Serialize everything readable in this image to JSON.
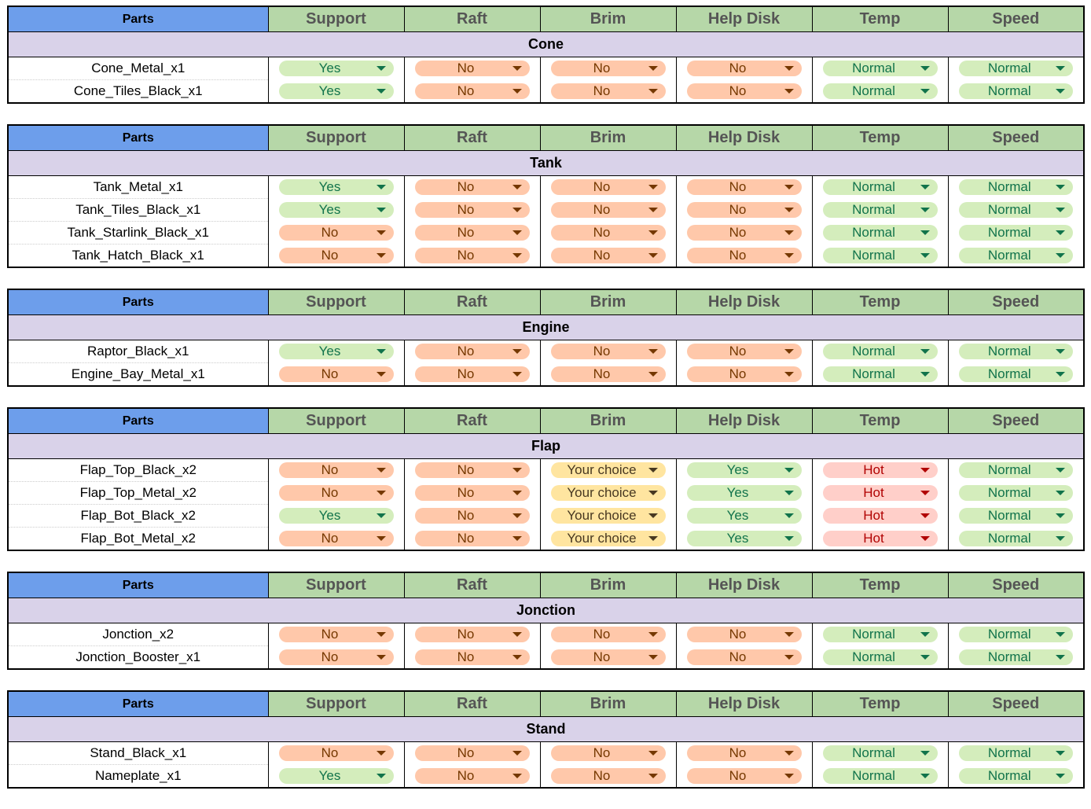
{
  "columns": [
    "Parts",
    "Support",
    "Raft",
    "Brim",
    "Help Disk",
    "Temp",
    "Speed"
  ],
  "tables": [
    {
      "title": "Cone",
      "rows": [
        {
          "part": "Cone_Metal_x1",
          "values": [
            "Yes",
            "No",
            "No",
            "No",
            "Normal",
            "Normal"
          ]
        },
        {
          "part": "Cone_Tiles_Black_x1",
          "values": [
            "Yes",
            "No",
            "No",
            "No",
            "Normal",
            "Normal"
          ]
        }
      ]
    },
    {
      "title": "Tank",
      "rows": [
        {
          "part": "Tank_Metal_x1",
          "values": [
            "Yes",
            "No",
            "No",
            "No",
            "Normal",
            "Normal"
          ]
        },
        {
          "part": "Tank_Tiles_Black_x1",
          "values": [
            "Yes",
            "No",
            "No",
            "No",
            "Normal",
            "Normal"
          ]
        },
        {
          "part": "Tank_Starlink_Black_x1",
          "values": [
            "No",
            "No",
            "No",
            "No",
            "Normal",
            "Normal"
          ]
        },
        {
          "part": "Tank_Hatch_Black_x1",
          "values": [
            "No",
            "No",
            "No",
            "No",
            "Normal",
            "Normal"
          ]
        }
      ]
    },
    {
      "title": "Engine",
      "rows": [
        {
          "part": "Raptor_Black_x1",
          "values": [
            "Yes",
            "No",
            "No",
            "No",
            "Normal",
            "Normal"
          ]
        },
        {
          "part": "Engine_Bay_Metal_x1",
          "values": [
            "No",
            "No",
            "No",
            "No",
            "Normal",
            "Normal"
          ]
        }
      ]
    },
    {
      "title": "Flap",
      "rows": [
        {
          "part": "Flap_Top_Black_x2",
          "values": [
            "No",
            "No",
            "Your choice",
            "Yes",
            "Hot",
            "Normal"
          ]
        },
        {
          "part": "Flap_Top_Metal_x2",
          "values": [
            "No",
            "No",
            "Your choice",
            "Yes",
            "Hot",
            "Normal"
          ]
        },
        {
          "part": "Flap_Bot_Black_x2",
          "values": [
            "Yes",
            "No",
            "Your choice",
            "Yes",
            "Hot",
            "Normal"
          ]
        },
        {
          "part": "Flap_Bot_Metal_x2",
          "values": [
            "No",
            "No",
            "Your choice",
            "Yes",
            "Hot",
            "Normal"
          ]
        }
      ]
    },
    {
      "title": "Jonction",
      "rows": [
        {
          "part": "Jonction_x2",
          "values": [
            "No",
            "No",
            "No",
            "No",
            "Normal",
            "Normal"
          ]
        },
        {
          "part": "Jonction_Booster_x1",
          "values": [
            "No",
            "No",
            "No",
            "No",
            "Normal",
            "Normal"
          ]
        }
      ]
    },
    {
      "title": "Stand",
      "rows": [
        {
          "part": "Stand_Black_x1",
          "values": [
            "No",
            "No",
            "No",
            "No",
            "Normal",
            "Normal"
          ]
        },
        {
          "part": "Nameplate_x1",
          "values": [
            "Yes",
            "No",
            "No",
            "No",
            "Normal",
            "Normal"
          ]
        }
      ]
    }
  ]
}
